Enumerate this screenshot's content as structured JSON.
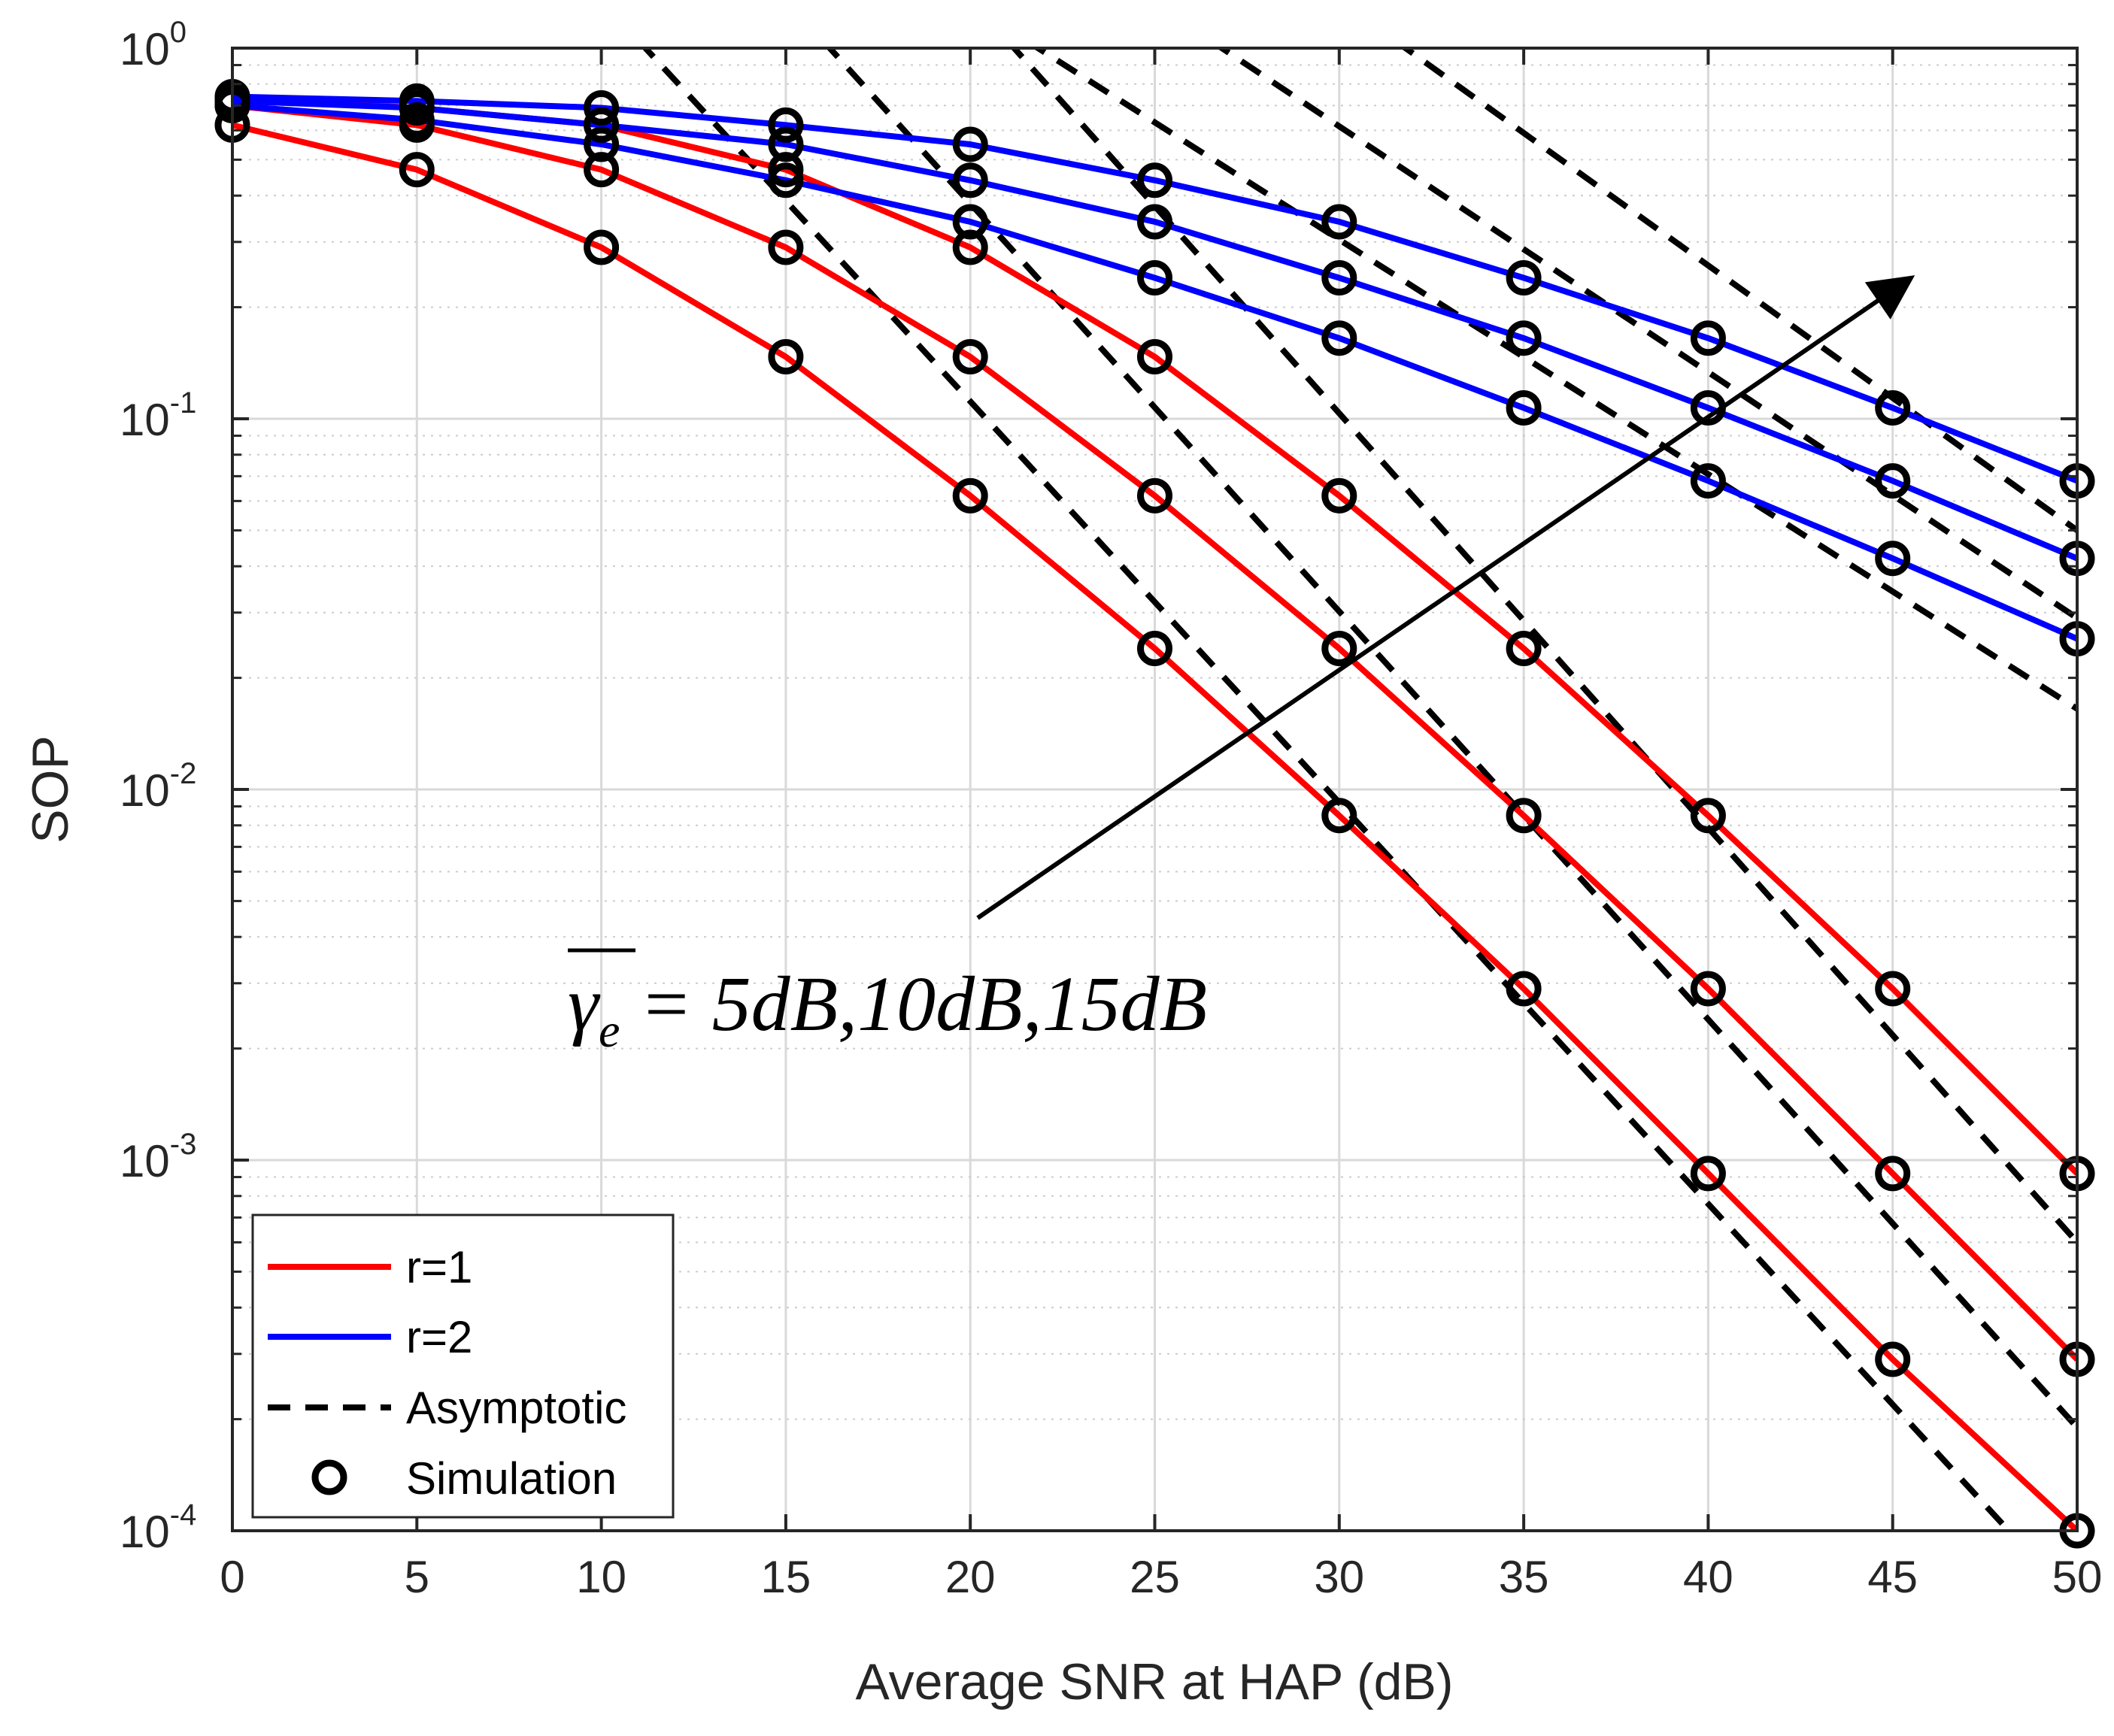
{
  "chart_data": {
    "type": "line",
    "title": "",
    "xlabel": "Average SNR at HAP (dB)",
    "ylabel": "SOP",
    "xlim": [
      0,
      50
    ],
    "ylim": [
      0.0001,
      1
    ],
    "yscale": "log",
    "grid": true,
    "x_ticks": [
      0,
      5,
      10,
      15,
      20,
      25,
      30,
      35,
      40,
      45,
      50
    ],
    "x_tick_labels": [
      "0",
      "5",
      "10",
      "15",
      "20",
      "25",
      "30",
      "35",
      "40",
      "45",
      "50"
    ],
    "y_ticks": [
      {
        "value": 1,
        "base": "10",
        "exp": "0"
      },
      {
        "value": 0.1,
        "base": "10",
        "exp": "-1"
      },
      {
        "value": 0.01,
        "base": "10",
        "exp": "-2"
      },
      {
        "value": 0.001,
        "base": "10",
        "exp": "-3"
      },
      {
        "value": 0.0001,
        "base": "10",
        "exp": "-4"
      }
    ],
    "legend_position": "bottom-left",
    "legend": [
      {
        "label": "r=1",
        "style": "solid",
        "color": "#ff0000"
      },
      {
        "label": "r=2",
        "style": "solid",
        "color": "#0000ff"
      },
      {
        "label": "Asymptotic",
        "style": "dashed",
        "color": "#000000"
      },
      {
        "label": "Simulation",
        "style": "marker",
        "color": "#000000"
      }
    ],
    "annotation": {
      "symbol": "γ",
      "subscript": "e",
      "text": " = 5dB,10dB,15dB",
      "arrow_from": {
        "x": 20.2,
        "y": 0.0045
      },
      "arrow_to": {
        "x": 45.5,
        "y": 0.24
      }
    },
    "x": [
      0,
      5,
      10,
      15,
      20,
      25,
      30,
      35,
      40,
      45,
      50
    ],
    "series": [
      {
        "name": "r=1, 5dB",
        "group": "r=1",
        "color": "#ff0000",
        "values": [
          0.62,
          0.47,
          0.29,
          0.147,
          0.062,
          0.024,
          0.0085,
          0.0029,
          0.00092,
          0.00029,
          0.0001
        ]
      },
      {
        "name": "r=1, 10dB",
        "group": "r=1",
        "color": "#ff0000",
        "values": [
          0.7,
          0.62,
          0.47,
          0.29,
          0.147,
          0.062,
          0.024,
          0.0085,
          0.0029,
          0.00092,
          0.00029
        ]
      },
      {
        "name": "r=1, 15dB",
        "group": "r=1",
        "color": "#ff0000",
        "values": [
          0.73,
          0.69,
          0.62,
          0.47,
          0.29,
          0.147,
          0.062,
          0.024,
          0.0085,
          0.0029,
          0.00092
        ]
      },
      {
        "name": "r=2, 5dB",
        "group": "r=2",
        "color": "#0000ff",
        "values": [
          0.7,
          0.64,
          0.55,
          0.44,
          0.34,
          0.24,
          0.165,
          0.107,
          0.068,
          0.042,
          0.0255
        ]
      },
      {
        "name": "r=2, 10dB",
        "group": "r=2",
        "color": "#0000ff",
        "values": [
          0.72,
          0.69,
          0.62,
          0.55,
          0.44,
          0.34,
          0.24,
          0.165,
          0.107,
          0.068,
          0.042
        ]
      },
      {
        "name": "r=2, 15dB",
        "group": "r=2",
        "color": "#0000ff",
        "values": [
          0.74,
          0.72,
          0.69,
          0.62,
          0.55,
          0.44,
          0.34,
          0.24,
          0.165,
          0.107,
          0.068
        ]
      }
    ],
    "asymptotic_series": [
      {
        "name": "Asymptotic r=1, 5dB",
        "x": [
          11,
          50
        ],
        "values": [
          1.05,
          6.3e-05
        ]
      },
      {
        "name": "Asymptotic r=1, 10dB",
        "x": [
          16,
          50
        ],
        "values": [
          1.05,
          0.00019
        ]
      },
      {
        "name": "Asymptotic r=1, 15dB",
        "x": [
          21,
          50
        ],
        "values": [
          1.05,
          0.0006
        ]
      },
      {
        "name": "Asymptotic r=2, 5dB",
        "x": [
          21.5,
          50
        ],
        "values": [
          1.05,
          0.0165
        ]
      },
      {
        "name": "Asymptotic r=2, 10dB",
        "x": [
          26.5,
          50
        ],
        "values": [
          1.05,
          0.029
        ]
      },
      {
        "name": "Asymptotic r=2, 15dB",
        "x": [
          31.5,
          50
        ],
        "values": [
          1.05,
          0.05
        ]
      }
    ],
    "simulation_markers": [
      {
        "series": "r=1, 5dB",
        "x": [
          0,
          5,
          10,
          15,
          20,
          25,
          30,
          35,
          40,
          45,
          50
        ]
      },
      {
        "series": "r=1, 10dB",
        "x": [
          0,
          5,
          10,
          15,
          20,
          25,
          30,
          35,
          40,
          45,
          50
        ]
      },
      {
        "series": "r=1, 15dB",
        "x": [
          0,
          5,
          10,
          15,
          20,
          25,
          30,
          35,
          40,
          45,
          50
        ]
      },
      {
        "series": "r=2, 5dB",
        "x": [
          0,
          5,
          10,
          15,
          20,
          25,
          30,
          35,
          40,
          45,
          50
        ]
      },
      {
        "series": "r=2, 10dB",
        "x": [
          0,
          5,
          10,
          15,
          20,
          25,
          30,
          35,
          40,
          45,
          50
        ]
      },
      {
        "series": "r=2, 15dB",
        "x": [
          0,
          5,
          10,
          15,
          20,
          25,
          30,
          35,
          40,
          45,
          50
        ]
      }
    ]
  }
}
